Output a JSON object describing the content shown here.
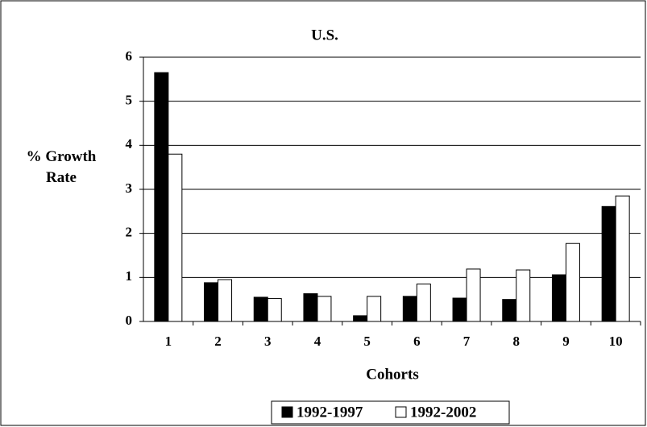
{
  "chart_data": {
    "type": "bar",
    "title": "U.S.",
    "y_label": "% Growth Rate",
    "x_label": "Cohorts",
    "categories": [
      "1",
      "2",
      "3",
      "4",
      "5",
      "6",
      "7",
      "8",
      "9",
      "10"
    ],
    "series": [
      {
        "name": "1992-1997",
        "color": "#000000",
        "values": [
          5.65,
          0.88,
          0.55,
          0.63,
          0.13,
          0.57,
          0.53,
          0.5,
          1.06,
          2.61
        ]
      },
      {
        "name": "1992-2002",
        "color": "#ffffff",
        "values": [
          3.8,
          0.95,
          0.52,
          0.57,
          0.57,
          0.85,
          1.19,
          1.17,
          1.77,
          2.85
        ]
      }
    ],
    "ylim": [
      0,
      6
    ],
    "yticks": [
      0,
      1,
      2,
      3,
      4,
      5,
      6
    ],
    "grid": true
  }
}
